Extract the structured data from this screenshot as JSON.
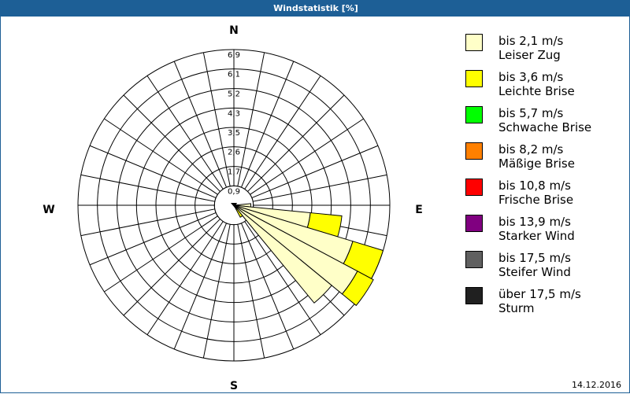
{
  "window": {
    "title": "Windstatistik [%]"
  },
  "footer": {
    "date": "14.12.2016"
  },
  "compass": {
    "n": "N",
    "e": "E",
    "s": "S",
    "w": "W"
  },
  "colors": {
    "frame": "#1d5f96",
    "grid": "#000000"
  },
  "legend": [
    {
      "range": "bis 2,1 m/s",
      "name": "Leiser Zug",
      "color": "#ffffc8"
    },
    {
      "range": "bis 3,6 m/s",
      "name": "Leichte Brise",
      "color": "#ffff00"
    },
    {
      "range": "bis 5,7 m/s",
      "name": "Schwache Brise",
      "color": "#00ff00"
    },
    {
      "range": "bis 8,2 m/s",
      "name": "Mäßige Brise",
      "color": "#ff8000"
    },
    {
      "range": "bis 10,8 m/s",
      "name": "Frische Brise",
      "color": "#ff0000"
    },
    {
      "range": "bis 13,9 m/s",
      "name": "Starker Wind",
      "color": "#800080"
    },
    {
      "range": "bis 17,5 m/s",
      "name": "Steifer Wind",
      "color": "#606060"
    },
    {
      "range": "über 17,5 m/s",
      "name": "Sturm",
      "color": "#202020"
    }
  ],
  "chart_data": {
    "type": "wind-rose",
    "title": "Windstatistik [%]",
    "unit": "%",
    "radial_ticks": [
      "0,9",
      "1,7",
      "2,6",
      "3,5",
      "4,3",
      "5,2",
      "6,1",
      "6,9"
    ],
    "radial_tick_values": [
      0.86,
      1.72,
      2.59,
      3.45,
      4.31,
      5.17,
      6.04,
      6.9
    ],
    "rmax": 6.9,
    "sector_count": 32,
    "sector_width_deg": 11.25,
    "speed_classes": [
      "bis 2,1 m/s",
      "bis 3,6 m/s",
      "bis 5,7 m/s",
      "bis 8,2 m/s",
      "bis 10,8 m/s",
      "bis 13,9 m/s",
      "bis 17,5 m/s",
      "über 17,5 m/s"
    ],
    "sectors": [
      {
        "direction_deg": 90,
        "stack": [
          0.75,
          0,
          0,
          0,
          0,
          0,
          0,
          0
        ]
      },
      {
        "direction_deg": 101.25,
        "stack": [
          3.4,
          1.4,
          0,
          0,
          0,
          0,
          0,
          0
        ]
      },
      {
        "direction_deg": 112.5,
        "stack": [
          5.5,
          1.4,
          0,
          0,
          0,
          0,
          0,
          0
        ]
      },
      {
        "direction_deg": 123.75,
        "stack": [
          6.2,
          0.8,
          0,
          0,
          0,
          0,
          0,
          0
        ]
      },
      {
        "direction_deg": 135,
        "stack": [
          5.6,
          0,
          0,
          0,
          0,
          0,
          0,
          0
        ]
      },
      {
        "direction_deg": 146.25,
        "stack": [
          0.2,
          0.4,
          0,
          0,
          0,
          0,
          0,
          0
        ]
      }
    ],
    "center_calm_marker": true,
    "legend_position": "right"
  }
}
